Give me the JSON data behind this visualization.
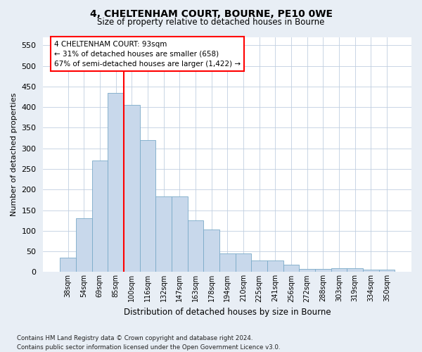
{
  "title": "4, CHELTENHAM COURT, BOURNE, PE10 0WE",
  "subtitle": "Size of property relative to detached houses in Bourne",
  "xlabel": "Distribution of detached houses by size in Bourne",
  "ylabel": "Number of detached properties",
  "bar_labels": [
    "38sqm",
    "54sqm",
    "69sqm",
    "85sqm",
    "100sqm",
    "116sqm",
    "132sqm",
    "147sqm",
    "163sqm",
    "178sqm",
    "194sqm",
    "210sqm",
    "225sqm",
    "241sqm",
    "256sqm",
    "272sqm",
    "288sqm",
    "303sqm",
    "319sqm",
    "334sqm",
    "350sqm"
  ],
  "bar_values": [
    35,
    130,
    270,
    435,
    405,
    320,
    183,
    183,
    125,
    103,
    45,
    45,
    28,
    28,
    17,
    7,
    7,
    10,
    10,
    5,
    5
  ],
  "bar_color": "#c8d8eb",
  "bar_edge_color": "#7aaac8",
  "vline_color": "red",
  "annotation_line1": "4 CHELTENHAM COURT: 93sqm",
  "annotation_line2": "← 31% of detached houses are smaller (658)",
  "annotation_line3": "67% of semi-detached houses are larger (1,422) →",
  "ylim": [
    0,
    570
  ],
  "yticks": [
    0,
    50,
    100,
    150,
    200,
    250,
    300,
    350,
    400,
    450,
    500,
    550
  ],
  "footnote": "Contains HM Land Registry data © Crown copyright and database right 2024.\nContains public sector information licensed under the Open Government Licence v3.0.",
  "bg_color": "#e8eef5",
  "plot_bg_color": "#ffffff",
  "grid_color": "#c0cfe0"
}
